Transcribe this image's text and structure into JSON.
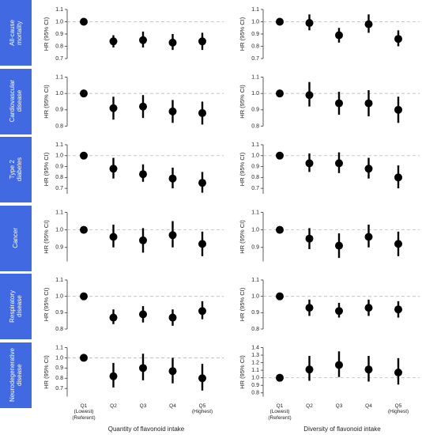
{
  "row_labels": [
    "All-cause\nmortality",
    "Cardiovascular\ndisease",
    "Type 2\ndiabetes",
    "Cancer",
    "Respiratory\ndisease",
    "Neurodegenerative\ndisease"
  ],
  "chart_data": [
    {
      "type": "errorbar",
      "ylabel": "HR (95% CI)",
      "ylim": [
        0.7,
        1.1
      ],
      "yticks": [
        0.7,
        0.8,
        0.9,
        {
          "value": 1.0,
          "label": "1.0"
        },
        1.1
      ],
      "refline": 1.0,
      "color": "#000000",
      "values": [
        1.0,
        0.84,
        0.85,
        0.83,
        0.84
      ],
      "lower": [
        1.0,
        0.79,
        0.79,
        0.77,
        0.77
      ],
      "upper": [
        1.0,
        0.89,
        0.92,
        0.9,
        0.91
      ]
    },
    {
      "type": "errorbar",
      "ylabel": "HR (95% CI)",
      "ylim": [
        0.7,
        1.1
      ],
      "yticks": [
        0.7,
        0.8,
        0.9,
        {
          "value": 1.0,
          "label": "1.0"
        },
        1.1
      ],
      "refline": 1.0,
      "color": "#000000",
      "values": [
        1.0,
        0.99,
        0.89,
        0.98,
        0.86
      ],
      "lower": [
        1.0,
        0.93,
        0.83,
        0.91,
        0.8
      ],
      "upper": [
        1.0,
        1.06,
        0.95,
        1.06,
        0.93
      ]
    },
    {
      "type": "errorbar",
      "ylabel": "HR (95% CI)",
      "ylim": [
        0.8,
        1.1
      ],
      "yticks": [
        0.8,
        0.9,
        {
          "value": 1.0,
          "label": "1.0"
        },
        1.1
      ],
      "refline": 1.0,
      "color": "#000000",
      "values": [
        1.0,
        0.91,
        0.92,
        0.89,
        0.88
      ],
      "lower": [
        1.0,
        0.84,
        0.85,
        0.82,
        0.81
      ],
      "upper": [
        1.0,
        0.98,
        0.99,
        0.96,
        0.95
      ]
    },
    {
      "type": "errorbar",
      "ylabel": "HR (95% CI)",
      "ylim": [
        0.8,
        1.1
      ],
      "yticks": [
        0.8,
        0.9,
        {
          "value": 1.0,
          "label": "1.0"
        },
        1.1
      ],
      "refline": 1.0,
      "color": "#000000",
      "values": [
        1.0,
        0.99,
        0.94,
        0.94,
        0.9
      ],
      "lower": [
        1.0,
        0.92,
        0.87,
        0.86,
        0.82
      ],
      "upper": [
        1.0,
        1.07,
        1.01,
        1.02,
        0.98
      ]
    },
    {
      "type": "errorbar",
      "ylabel": "HR (95% CI)",
      "ylim": [
        0.65,
        1.1
      ],
      "yticks": [
        0.7,
        0.8,
        0.9,
        {
          "value": 1.0,
          "label": "1.0"
        },
        1.1
      ],
      "refline": 1.0,
      "color": "#000000",
      "values": [
        1.0,
        0.88,
        0.83,
        0.79,
        0.75
      ],
      "lower": [
        1.0,
        0.79,
        0.76,
        0.7,
        0.66
      ],
      "upper": [
        1.0,
        0.98,
        0.92,
        0.89,
        0.85
      ]
    },
    {
      "type": "errorbar",
      "ylabel": "HR (95% CI)",
      "ylim": [
        0.65,
        1.1
      ],
      "yticks": [
        0.7,
        0.8,
        0.9,
        {
          "value": 1.0,
          "label": "1.0"
        },
        1.1
      ],
      "refline": 1.0,
      "color": "#000000",
      "values": [
        1.0,
        0.93,
        0.93,
        0.88,
        0.8
      ],
      "lower": [
        1.0,
        0.85,
        0.84,
        0.79,
        0.7
      ],
      "upper": [
        1.0,
        1.02,
        1.03,
        0.98,
        0.91
      ]
    },
    {
      "type": "errorbar",
      "ylabel": "HR (95% CI)",
      "ylim": [
        0.82,
        1.1
      ],
      "yticks": [
        0.9,
        {
          "value": 1.0,
          "label": "1.0"
        },
        1.1
      ],
      "refline": 1.0,
      "color": "#000000",
      "values": [
        1.0,
        0.96,
        0.94,
        0.97,
        0.92
      ],
      "lower": [
        1.0,
        0.9,
        0.87,
        0.9,
        0.85
      ],
      "upper": [
        1.0,
        1.03,
        1.01,
        1.05,
        0.99
      ]
    },
    {
      "type": "errorbar",
      "ylabel": "HR (95% CI)",
      "ylim": [
        0.82,
        1.1
      ],
      "yticks": [
        0.9,
        {
          "value": 1.0,
          "label": "1.0"
        },
        1.1
      ],
      "refline": 1.0,
      "color": "#000000",
      "values": [
        1.0,
        0.95,
        0.91,
        0.96,
        0.92
      ],
      "lower": [
        1.0,
        0.89,
        0.84,
        0.9,
        0.85
      ],
      "upper": [
        1.0,
        1.01,
        0.98,
        1.03,
        0.99
      ]
    },
    {
      "type": "errorbar",
      "ylabel": "HR (95% CI)",
      "ylim": [
        0.8,
        1.1
      ],
      "yticks": [
        0.8,
        0.9,
        {
          "value": 1.0,
          "label": "1.0"
        },
        1.1
      ],
      "refline": 1.0,
      "color": "#000000",
      "values": [
        1.0,
        0.87,
        0.89,
        0.87,
        0.91
      ],
      "lower": [
        1.0,
        0.83,
        0.84,
        0.82,
        0.86
      ],
      "upper": [
        1.0,
        0.92,
        0.94,
        0.92,
        0.97
      ]
    },
    {
      "type": "errorbar",
      "ylabel": "HR (95% CI)",
      "ylim": [
        0.8,
        1.1
      ],
      "yticks": [
        0.8,
        0.9,
        {
          "value": 1.0,
          "label": "1.0"
        },
        1.1
      ],
      "refline": 1.0,
      "color": "#000000",
      "values": [
        1.0,
        0.93,
        0.91,
        0.93,
        0.92
      ],
      "lower": [
        1.0,
        0.88,
        0.87,
        0.88,
        0.87
      ],
      "upper": [
        1.0,
        0.98,
        0.96,
        0.98,
        0.97
      ]
    },
    {
      "type": "errorbar",
      "ylabel": "HR (95% CI)",
      "ylim": [
        0.62,
        1.1
      ],
      "yticks": [
        0.7,
        0.8,
        0.9,
        {
          "value": 1.0,
          "label": "1.0"
        },
        1.1
      ],
      "refline": 1.0,
      "color": "#000000",
      "values": [
        1.0,
        0.82,
        0.9,
        0.87,
        0.8
      ],
      "lower": [
        1.0,
        0.71,
        0.78,
        0.75,
        0.68
      ],
      "upper": [
        1.0,
        0.95,
        1.04,
        1.0,
        0.94
      ],
      "categories": [
        "Q1\n(Lowest)\n(Referent)",
        "Q2",
        "Q3",
        "Q4",
        "Q5\n(Highest)"
      ],
      "xlabel": "Quantity of flavonoid intake"
    },
    {
      "type": "errorbar",
      "ylabel": "HR (95% CI)",
      "ylim": [
        0.75,
        1.4
      ],
      "yticks": [
        0.8,
        0.9,
        {
          "value": 1.0,
          "label": "1.0"
        },
        1.1,
        1.2,
        1.3,
        1.4
      ],
      "refline": 1.0,
      "color": "#000000",
      "values": [
        1.0,
        1.11,
        1.17,
        1.11,
        1.07
      ],
      "lower": [
        1.0,
        0.96,
        1.01,
        0.95,
        0.91
      ],
      "upper": [
        1.0,
        1.29,
        1.35,
        1.29,
        1.26
      ],
      "categories": [
        "Q1\n(Lowest)\n(Referent)",
        "Q2",
        "Q3",
        "Q4",
        "Q5\n(Highest)"
      ],
      "xlabel": "Diversity of flavonoid intake"
    }
  ]
}
